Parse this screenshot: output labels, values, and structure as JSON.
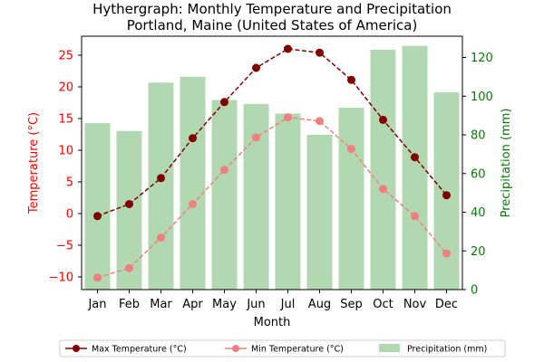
{
  "chart_data": {
    "type": "bar+line",
    "title": "Hythergraph: Monthly Temperature and Precipitation",
    "subtitle": "Portland, Maine (United States of America)",
    "xlabel": "Month",
    "ylabel_left": "Temperature (°C)",
    "ylabel_right": "Precipitation (mm)",
    "categories": [
      "Jan",
      "Feb",
      "Mar",
      "Apr",
      "May",
      "Jun",
      "Jul",
      "Aug",
      "Sep",
      "Oct",
      "Nov",
      "Dec"
    ],
    "ylim_left": [
      -12,
      28
    ],
    "yticks_left": [
      -10,
      -5,
      0,
      5,
      10,
      15,
      20,
      25
    ],
    "ylim_right": [
      0,
      131
    ],
    "yticks_right": [
      0,
      20,
      40,
      60,
      80,
      100,
      120
    ],
    "series": [
      {
        "name": "Max Temperature (°C)",
        "kind": "line",
        "axis": "left",
        "color": "#800000",
        "values": [
          -0.4,
          1.5,
          5.6,
          11.9,
          17.6,
          23.0,
          26.0,
          25.4,
          21.1,
          14.8,
          8.9,
          2.9
        ]
      },
      {
        "name": "Min Temperature (°C)",
        "kind": "line",
        "axis": "left",
        "color": "#f08080",
        "values": [
          -10.1,
          -8.6,
          -3.8,
          1.5,
          6.9,
          12.0,
          15.2,
          14.6,
          10.2,
          3.9,
          -0.4,
          -6.3
        ]
      },
      {
        "name": "Precipitation (mm)",
        "kind": "bar",
        "axis": "right",
        "color": "#b2d8b2",
        "values": [
          86,
          82,
          107,
          110,
          98,
          96,
          91,
          80,
          94,
          124,
          126,
          102
        ]
      }
    ],
    "legend_position": "bottom-center",
    "colors": {
      "left_axis": "#ff0000",
      "right_axis": "#008000"
    }
  }
}
